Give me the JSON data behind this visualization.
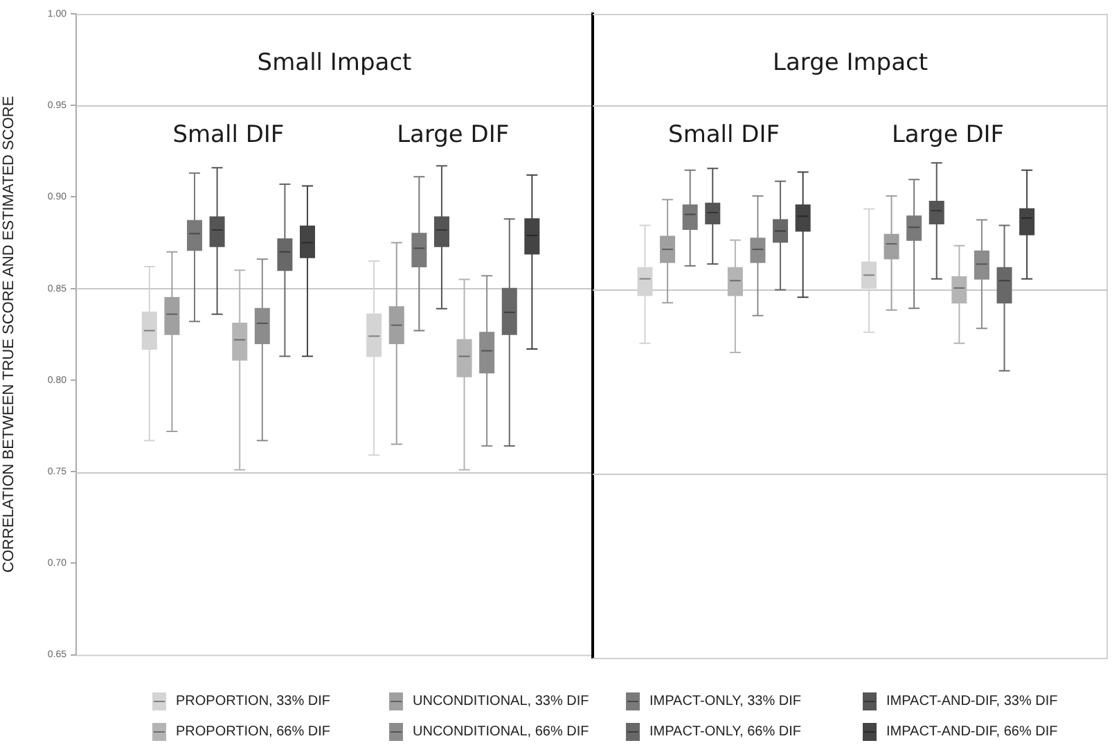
{
  "chart_data": [
    {
      "type": "box",
      "title": "Small Impact",
      "ylabel": "CORRELATION BETWEEN TRUE SCORE AND ESTIMATED SCORE",
      "categories": [
        "Small DIF",
        "Large DIF"
      ],
      "ylim": [
        0.65,
        1.0
      ],
      "yticks": [
        {
          "value": 0.65,
          "label": "0.65"
        },
        {
          "value": 0.7,
          "label": "0.70"
        },
        {
          "value": 0.75,
          "label": "0.75"
        },
        {
          "value": 0.8,
          "label": "0.80"
        },
        {
          "value": 0.85,
          "label": "0.85"
        },
        {
          "value": 0.9,
          "label": "0.90"
        },
        {
          "value": 0.95,
          "label": "0.95"
        },
        {
          "value": 1.0,
          "label": "1.00"
        }
      ],
      "ref_lines": [
        {
          "axis": "y",
          "value": 0.75,
          "color": "#c8c8c8"
        },
        {
          "axis": "y",
          "value": 0.85,
          "color": "#c8c8c8"
        },
        {
          "axis": "y",
          "value": 0.95,
          "color": "#c8c8c8"
        }
      ],
      "legend": "bottom",
      "series": [
        {
          "name": "PROPORTION, 33% DIF",
          "color": "#d4d4d4",
          "boxes": [
            {
              "low": 0.767,
              "q1": 0.817,
              "median": 0.827,
              "q3": 0.837,
              "high": 0.862
            },
            {
              "low": 0.759,
              "q1": 0.813,
              "median": 0.824,
              "q3": 0.836,
              "high": 0.865
            }
          ]
        },
        {
          "name": "UNCONDITIONAL, 33% DIF",
          "color": "#a0a0a0",
          "boxes": [
            {
              "low": 0.772,
              "q1": 0.825,
              "median": 0.836,
              "q3": 0.845,
              "high": 0.87
            },
            {
              "low": 0.765,
              "q1": 0.82,
              "median": 0.83,
              "q3": 0.84,
              "high": 0.875
            }
          ]
        },
        {
          "name": "IMPACT-ONLY, 33% DIF",
          "color": "#7a7a7a",
          "boxes": [
            {
              "low": 0.832,
              "q1": 0.871,
              "median": 0.88,
              "q3": 0.887,
              "high": 0.913
            },
            {
              "low": 0.827,
              "q1": 0.862,
              "median": 0.872,
              "q3": 0.88,
              "high": 0.911
            }
          ]
        },
        {
          "name": "IMPACT-AND-DIF, 33% DIF",
          "color": "#555555",
          "boxes": [
            {
              "low": 0.836,
              "q1": 0.873,
              "median": 0.882,
              "q3": 0.889,
              "high": 0.916
            },
            {
              "low": 0.839,
              "q1": 0.873,
              "median": 0.882,
              "q3": 0.889,
              "high": 0.917
            }
          ]
        },
        {
          "name": "PROPORTION, 66% DIF",
          "color": "#b4b4b4",
          "boxes": [
            {
              "low": 0.751,
              "q1": 0.811,
              "median": 0.822,
              "q3": 0.831,
              "high": 0.86
            },
            {
              "low": 0.751,
              "q1": 0.802,
              "median": 0.813,
              "q3": 0.822,
              "high": 0.855
            }
          ]
        },
        {
          "name": "UNCONDITIONAL, 66% DIF",
          "color": "#8c8c8c",
          "boxes": [
            {
              "low": 0.767,
              "q1": 0.82,
              "median": 0.831,
              "q3": 0.839,
              "high": 0.866
            },
            {
              "low": 0.764,
              "q1": 0.804,
              "median": 0.816,
              "q3": 0.826,
              "high": 0.857
            }
          ]
        },
        {
          "name": "IMPACT-ONLY, 66% DIF",
          "color": "#686868",
          "boxes": [
            {
              "low": 0.813,
              "q1": 0.86,
              "median": 0.87,
              "q3": 0.877,
              "high": 0.907
            },
            {
              "low": 0.764,
              "q1": 0.825,
              "median": 0.837,
              "q3": 0.85,
              "high": 0.888
            }
          ]
        },
        {
          "name": "IMPACT-AND-DIF, 66% DIF",
          "color": "#444444",
          "boxes": [
            {
              "low": 0.813,
              "q1": 0.867,
              "median": 0.875,
              "q3": 0.884,
              "high": 0.906
            },
            {
              "low": 0.817,
              "q1": 0.869,
              "median": 0.879,
              "q3": 0.888,
              "high": 0.912
            }
          ]
        }
      ]
    },
    {
      "type": "box",
      "title": "Large Impact",
      "categories": [
        "Small DIF",
        "Large DIF"
      ],
      "ylim": [
        0.65,
        1.0
      ],
      "tick_labels": "x",
      "ref_lines": [
        {
          "axis": "y",
          "value": 0.75,
          "color": "#c8c8c8"
        },
        {
          "axis": "y",
          "value": 0.85,
          "color": "#c8c8c8"
        },
        {
          "axis": "y",
          "value": 0.95,
          "color": "#c8c8c8"
        }
      ],
      "series": [
        {
          "color": "#d4d4d4",
          "boxes": [
            {
              "low": 0.821,
              "q1": 0.847,
              "median": 0.856,
              "q3": 0.862,
              "high": 0.885
            },
            {
              "low": 0.827,
              "q1": 0.851,
              "median": 0.858,
              "q3": 0.865,
              "high": 0.894
            }
          ]
        },
        {
          "color": "#a0a0a0",
          "boxes": [
            {
              "low": 0.843,
              "q1": 0.865,
              "median": 0.872,
              "q3": 0.879,
              "high": 0.899
            },
            {
              "low": 0.839,
              "q1": 0.867,
              "median": 0.875,
              "q3": 0.88,
              "high": 0.901
            }
          ]
        },
        {
          "color": "#7a7a7a",
          "boxes": [
            {
              "low": 0.863,
              "q1": 0.883,
              "median": 0.891,
              "q3": 0.896,
              "high": 0.915
            },
            {
              "low": 0.84,
              "q1": 0.877,
              "median": 0.884,
              "q3": 0.89,
              "high": 0.91
            }
          ]
        },
        {
          "color": "#555555",
          "boxes": [
            {
              "low": 0.864,
              "q1": 0.886,
              "median": 0.892,
              "q3": 0.897,
              "high": 0.916
            },
            {
              "low": 0.856,
              "q1": 0.886,
              "median": 0.893,
              "q3": 0.898,
              "high": 0.919
            }
          ]
        },
        {
          "color": "#b4b4b4",
          "boxes": [
            {
              "low": 0.816,
              "q1": 0.847,
              "median": 0.855,
              "q3": 0.862,
              "high": 0.877
            },
            {
              "low": 0.821,
              "q1": 0.843,
              "median": 0.851,
              "q3": 0.857,
              "high": 0.874
            }
          ]
        },
        {
          "color": "#8c8c8c",
          "boxes": [
            {
              "low": 0.836,
              "q1": 0.865,
              "median": 0.872,
              "q3": 0.878,
              "high": 0.901
            },
            {
              "low": 0.829,
              "q1": 0.856,
              "median": 0.864,
              "q3": 0.871,
              "high": 0.888
            }
          ]
        },
        {
          "color": "#686868",
          "boxes": [
            {
              "low": 0.85,
              "q1": 0.876,
              "median": 0.882,
              "q3": 0.888,
              "high": 0.909
            },
            {
              "low": 0.806,
              "q1": 0.843,
              "median": 0.855,
              "q3": 0.862,
              "high": 0.885
            }
          ]
        },
        {
          "color": "#444444",
          "boxes": [
            {
              "low": 0.846,
              "q1": 0.882,
              "median": 0.89,
              "q3": 0.896,
              "high": 0.914
            },
            {
              "low": 0.856,
              "q1": 0.88,
              "median": 0.889,
              "q3": 0.894,
              "high": 0.915
            }
          ]
        }
      ]
    }
  ]
}
